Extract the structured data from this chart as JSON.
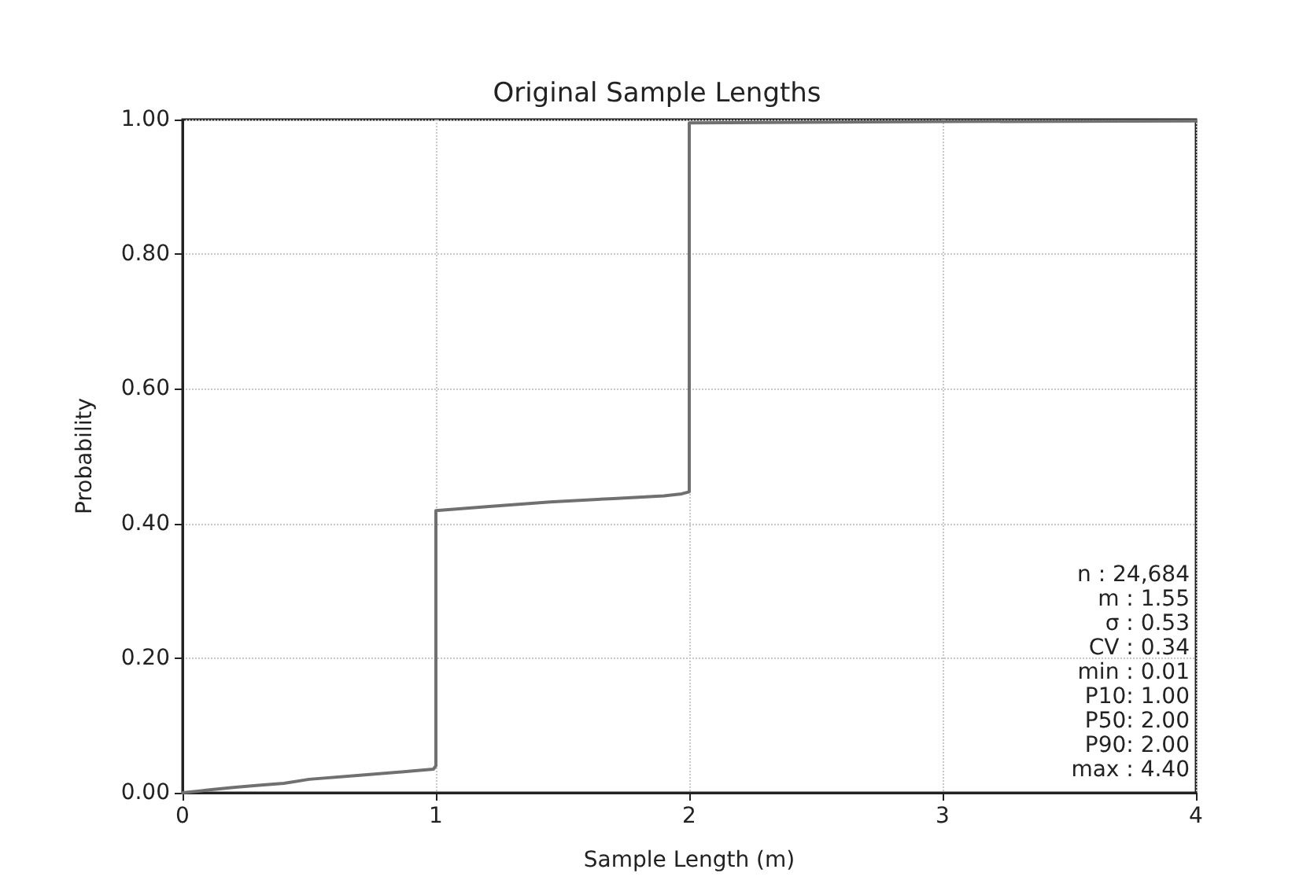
{
  "chart_data": {
    "type": "line",
    "title": "Original Sample Lengths",
    "xlabel": "Sample Length (m)",
    "ylabel": "Probability",
    "series": [
      {
        "color": "#707070",
        "x": [
          0,
          0.1,
          0.2,
          0.3,
          0.4,
          0.5,
          0.7,
          0.9,
          0.99,
          1.0,
          1.0,
          1.2,
          1.45,
          1.7,
          1.9,
          1.97,
          2.0,
          2.0,
          3.0,
          4.0
        ],
        "values": [
          0,
          0.004,
          0.008,
          0.011,
          0.014,
          0.02,
          0.026,
          0.032,
          0.035,
          0.04,
          0.419,
          0.425,
          0.432,
          0.437,
          0.441,
          0.444,
          0.447,
          0.995,
          0.997,
          0.998
        ]
      }
    ],
    "xlim": [
      0,
      4
    ],
    "xticks": [
      0,
      1,
      2,
      3,
      4
    ],
    "ylim": [
      0,
      1
    ],
    "yticks": [
      {
        "value": 0,
        "label": "0.00"
      },
      {
        "value": 0.2,
        "label": "0.20"
      },
      {
        "value": 0.4,
        "label": "0.40"
      },
      {
        "value": 0.6,
        "label": "0.60"
      },
      {
        "value": 0.8,
        "label": "0.80"
      },
      {
        "value": 1,
        "label": "1.00"
      }
    ],
    "grid": true,
    "marker": "none",
    "line_style": "solid",
    "annotations": [
      "n : 24,684",
      "m : 1.55",
      "σ : 0.53",
      "CV : 0.34",
      "min : 0.01",
      "P10: 1.00",
      "P50: 2.00",
      "P90: 2.00",
      "max : 4.40"
    ]
  }
}
